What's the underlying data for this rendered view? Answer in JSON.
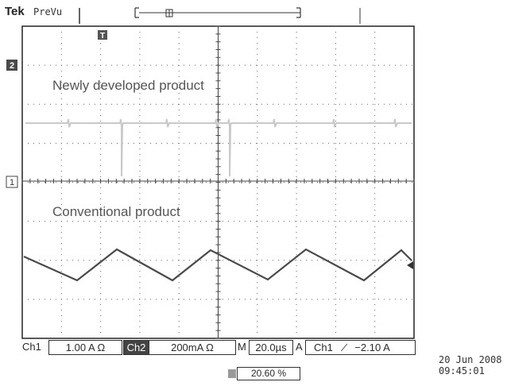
{
  "header": {
    "brand": "Tek",
    "mode": "PreVu"
  },
  "channels": {
    "ch2_marker": "2",
    "ch1_marker": "1",
    "trigger_marker": "T"
  },
  "annotations": {
    "upper": "Newly developed product",
    "lower": "Conventional product"
  },
  "status": {
    "ch1_label": "Ch1",
    "ch1_scale": "1.00 A Ω",
    "ch2_label": "Ch2",
    "ch2_scale": "200mA Ω",
    "timebase_label": "M",
    "timebase_value": "20.0µs",
    "trigger_mode": "A",
    "trigger_source": "Ch1",
    "trigger_slope": "∕",
    "trigger_level": "−2.10 A",
    "trigger_position": "20.60 %"
  },
  "timestamp": {
    "date": "20 Jun  2008",
    "time": "09:45:01"
  },
  "colors": {
    "trace_upper": "#c8c8c8",
    "trace_lower": "#4a4a4a",
    "grid": "#555555",
    "border": "#222222"
  },
  "chart_data": {
    "type": "line",
    "grid": {
      "divisions_x": 10,
      "divisions_y": 8
    },
    "series": [
      {
        "name": "Newly developed product",
        "description_shape": "flat with sparse spikes"
      },
      {
        "name": "Conventional product",
        "description_shape": "sawtooth ripple"
      }
    ]
  }
}
